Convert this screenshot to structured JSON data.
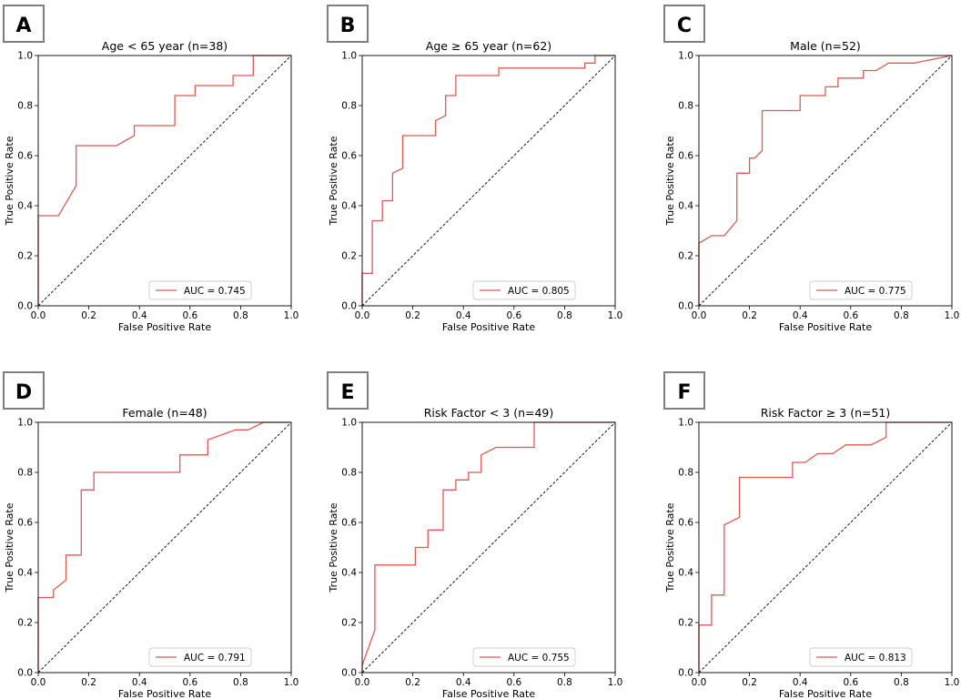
{
  "colors": {
    "roc": "#e05a52",
    "diagonal": "#000000",
    "axes": "#000000",
    "panel_label_border": "#7f7f7f"
  },
  "chart_data": [
    {
      "type": "line",
      "panel_label": "A",
      "title": "Age < 65 year (n=38)",
      "xlabel": "False Positive Rate",
      "ylabel": "True Positive Rate",
      "xlim": [
        0,
        1
      ],
      "ylim": [
        0,
        1
      ],
      "xticks": [
        "0.0",
        "0.2",
        "0.4",
        "0.6",
        "0.8",
        "1.0"
      ],
      "yticks": [
        "0.0",
        "0.2",
        "0.4",
        "0.6",
        "0.8",
        "1.0"
      ],
      "legend": "AUC = 0.745",
      "legend_loc": "lower-right",
      "series": [
        {
          "name": "ROC",
          "x": [
            0,
            0,
            0.08,
            0.15,
            0.15,
            0.31,
            0.38,
            0.38,
            0.54,
            0.54,
            0.62,
            0.62,
            0.77,
            0.77,
            0.85,
            0.85,
            1.0
          ],
          "y": [
            0,
            0.36,
            0.36,
            0.48,
            0.64,
            0.64,
            0.68,
            0.72,
            0.72,
            0.84,
            0.84,
            0.88,
            0.88,
            0.92,
            0.92,
            1.0,
            1.0
          ]
        },
        {
          "name": "Chance",
          "x": [
            0,
            1
          ],
          "y": [
            0,
            1
          ],
          "style": "dashed"
        }
      ]
    },
    {
      "type": "line",
      "panel_label": "B",
      "title": "Age ≥ 65 year (n=62)",
      "xlabel": "False Positive Rate",
      "ylabel": "True Positive Rate",
      "xlim": [
        0,
        1
      ],
      "ylim": [
        0,
        1
      ],
      "xticks": [
        "0.0",
        "0.2",
        "0.4",
        "0.6",
        "0.8",
        "1.0"
      ],
      "yticks": [
        "0.0",
        "0.2",
        "0.4",
        "0.6",
        "0.8",
        "1.0"
      ],
      "legend": "AUC = 0.805",
      "legend_loc": "lower-right",
      "series": [
        {
          "name": "ROC",
          "x": [
            0,
            0,
            0.04,
            0.04,
            0.08,
            0.08,
            0.12,
            0.12,
            0.16,
            0.16,
            0.29,
            0.29,
            0.33,
            0.33,
            0.37,
            0.37,
            0.54,
            0.54,
            0.88,
            0.88,
            0.92,
            0.92,
            1.0
          ],
          "y": [
            0,
            0.13,
            0.13,
            0.34,
            0.34,
            0.42,
            0.42,
            0.53,
            0.55,
            0.68,
            0.68,
            0.74,
            0.76,
            0.84,
            0.84,
            0.92,
            0.92,
            0.95,
            0.95,
            0.97,
            0.97,
            1.0,
            1.0
          ]
        },
        {
          "name": "Chance",
          "x": [
            0,
            1
          ],
          "y": [
            0,
            1
          ],
          "style": "dashed"
        }
      ]
    },
    {
      "type": "line",
      "panel_label": "C",
      "title": "Male (n=52)",
      "xlabel": "False Positive Rate",
      "ylabel": "True Positive Rate",
      "xlim": [
        0,
        1
      ],
      "ylim": [
        0,
        1
      ],
      "xticks": [
        "0.0",
        "0.2",
        "0.4",
        "0.6",
        "0.8",
        "1.0"
      ],
      "yticks": [
        "0.0",
        "0.2",
        "0.4",
        "0.6",
        "0.8",
        "1.0"
      ],
      "legend": "AUC = 0.775",
      "legend_loc": "lower-right",
      "series": [
        {
          "name": "ROC",
          "x": [
            0,
            0,
            0.05,
            0.1,
            0.15,
            0.15,
            0.2,
            0.2,
            0.22,
            0.25,
            0.25,
            0.4,
            0.4,
            0.5,
            0.5,
            0.55,
            0.55,
            0.65,
            0.65,
            0.7,
            0.75,
            0.85,
            1.0
          ],
          "y": [
            0,
            0.25,
            0.28,
            0.28,
            0.34,
            0.53,
            0.53,
            0.59,
            0.59,
            0.62,
            0.78,
            0.78,
            0.84,
            0.84,
            0.875,
            0.875,
            0.91,
            0.91,
            0.94,
            0.94,
            0.97,
            0.97,
            1.0
          ]
        },
        {
          "name": "Chance",
          "x": [
            0,
            1
          ],
          "y": [
            0,
            1
          ],
          "style": "dashed"
        }
      ]
    },
    {
      "type": "line",
      "panel_label": "D",
      "title": "Female (n=48)",
      "xlabel": "False Positive Rate",
      "ylabel": "True Positive Rate",
      "xlim": [
        0,
        1
      ],
      "ylim": [
        0,
        1
      ],
      "xticks": [
        "0.0",
        "0.2",
        "0.4",
        "0.6",
        "0.8",
        "1.0"
      ],
      "yticks": [
        "0.0",
        "0.2",
        "0.4",
        "0.6",
        "0.8",
        "1.0"
      ],
      "legend": "AUC = 0.791",
      "legend_loc": "lower-right",
      "series": [
        {
          "name": "ROC",
          "x": [
            0,
            0,
            0.06,
            0.06,
            0.11,
            0.11,
            0.17,
            0.17,
            0.22,
            0.22,
            0.56,
            0.56,
            0.67,
            0.67,
            0.78,
            0.83,
            0.89,
            1.0
          ],
          "y": [
            0,
            0.3,
            0.3,
            0.33,
            0.37,
            0.47,
            0.47,
            0.73,
            0.73,
            0.8,
            0.8,
            0.87,
            0.87,
            0.93,
            0.97,
            0.97,
            1.0,
            1.0
          ]
        },
        {
          "name": "Chance",
          "x": [
            0,
            1
          ],
          "y": [
            0,
            1
          ],
          "style": "dashed"
        }
      ]
    },
    {
      "type": "line",
      "panel_label": "E",
      "title": "Risk Factor < 3 (n=49)",
      "xlabel": "False Positive Rate",
      "ylabel": "True Positive Rate",
      "xlim": [
        0,
        1
      ],
      "ylim": [
        0,
        1
      ],
      "xticks": [
        "0.0",
        "0.2",
        "0.4",
        "0.6",
        "0.8",
        "1.0"
      ],
      "yticks": [
        "0.0",
        "0.2",
        "0.4",
        "0.6",
        "0.8",
        "1.0"
      ],
      "legend": "AUC = 0.755",
      "legend_loc": "lower-right",
      "series": [
        {
          "name": "ROC",
          "x": [
            0,
            0,
            0.05,
            0.05,
            0.21,
            0.21,
            0.26,
            0.26,
            0.32,
            0.32,
            0.37,
            0.37,
            0.42,
            0.42,
            0.47,
            0.47,
            0.53,
            0.68,
            0.68,
            1.0
          ],
          "y": [
            0,
            0.03,
            0.17,
            0.43,
            0.43,
            0.5,
            0.5,
            0.57,
            0.57,
            0.73,
            0.73,
            0.77,
            0.77,
            0.8,
            0.8,
            0.87,
            0.9,
            0.9,
            1.0,
            1.0
          ]
        },
        {
          "name": "Chance",
          "x": [
            0,
            1
          ],
          "y": [
            0,
            1
          ],
          "style": "dashed"
        }
      ]
    },
    {
      "type": "line",
      "panel_label": "F",
      "title": "Risk Factor ≥ 3 (n=51)",
      "xlabel": "False Positive Rate",
      "ylabel": "True Positive Rate",
      "xlim": [
        0,
        1
      ],
      "ylim": [
        0,
        1
      ],
      "xticks": [
        "0.0",
        "0.2",
        "0.4",
        "0.6",
        "0.8",
        "1.0"
      ],
      "yticks": [
        "0.0",
        "0.2",
        "0.4",
        "0.6",
        "0.8",
        "1.0"
      ],
      "legend": "AUC = 0.813",
      "legend_loc": "lower-right",
      "series": [
        {
          "name": "ROC",
          "x": [
            0,
            0,
            0.05,
            0.05,
            0.1,
            0.1,
            0.16,
            0.16,
            0.37,
            0.37,
            0.42,
            0.47,
            0.53,
            0.58,
            0.68,
            0.74,
            0.74,
            1.0
          ],
          "y": [
            0,
            0.19,
            0.19,
            0.31,
            0.31,
            0.59,
            0.62,
            0.78,
            0.78,
            0.84,
            0.84,
            0.875,
            0.875,
            0.91,
            0.91,
            0.94,
            1.0,
            1.0
          ]
        },
        {
          "name": "Chance",
          "x": [
            0,
            1
          ],
          "y": [
            0,
            1
          ],
          "style": "dashed"
        }
      ]
    }
  ]
}
